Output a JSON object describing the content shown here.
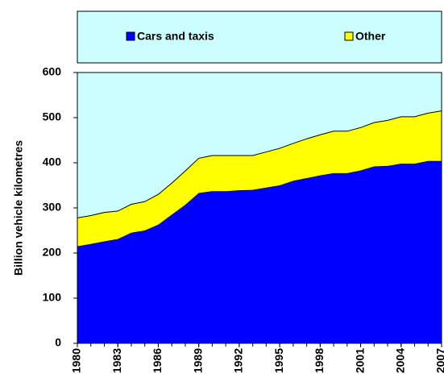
{
  "chart_data": {
    "type": "stacked_area",
    "y_label": "Billion vehicle kilometres",
    "x": [
      1980,
      1981,
      1982,
      1983,
      1984,
      1985,
      1986,
      1987,
      1988,
      1989,
      1990,
      1991,
      1992,
      1993,
      1994,
      1995,
      1996,
      1997,
      1998,
      1999,
      2000,
      2001,
      2002,
      2003,
      2004,
      2005,
      2006,
      2007
    ],
    "series": [
      {
        "name": "Cars and taxis",
        "color": "#0000ff",
        "values": [
          215,
          220,
          226,
          231,
          245,
          250,
          263,
          285,
          307,
          333,
          337,
          337,
          339,
          340,
          345,
          350,
          360,
          366,
          372,
          377,
          377,
          383,
          392,
          393,
          398,
          398,
          404,
          404
        ]
      },
      {
        "name": "Other",
        "color": "#ffff00",
        "values": [
          63,
          63,
          64,
          62,
          63,
          64,
          67,
          70,
          75,
          77,
          79,
          79,
          77,
          76,
          79,
          82,
          83,
          87,
          90,
          93,
          93,
          95,
          97,
          101,
          104,
          104,
          106,
          111
        ]
      }
    ],
    "xlim": [
      1980,
      2007
    ],
    "xticks": [
      1980,
      1983,
      1986,
      1989,
      1992,
      1995,
      1998,
      2001,
      2004,
      2007
    ],
    "ylim": [
      0,
      600
    ],
    "yticks": [
      0,
      100,
      200,
      300,
      400,
      500,
      600
    ],
    "background": "#ccffff"
  }
}
